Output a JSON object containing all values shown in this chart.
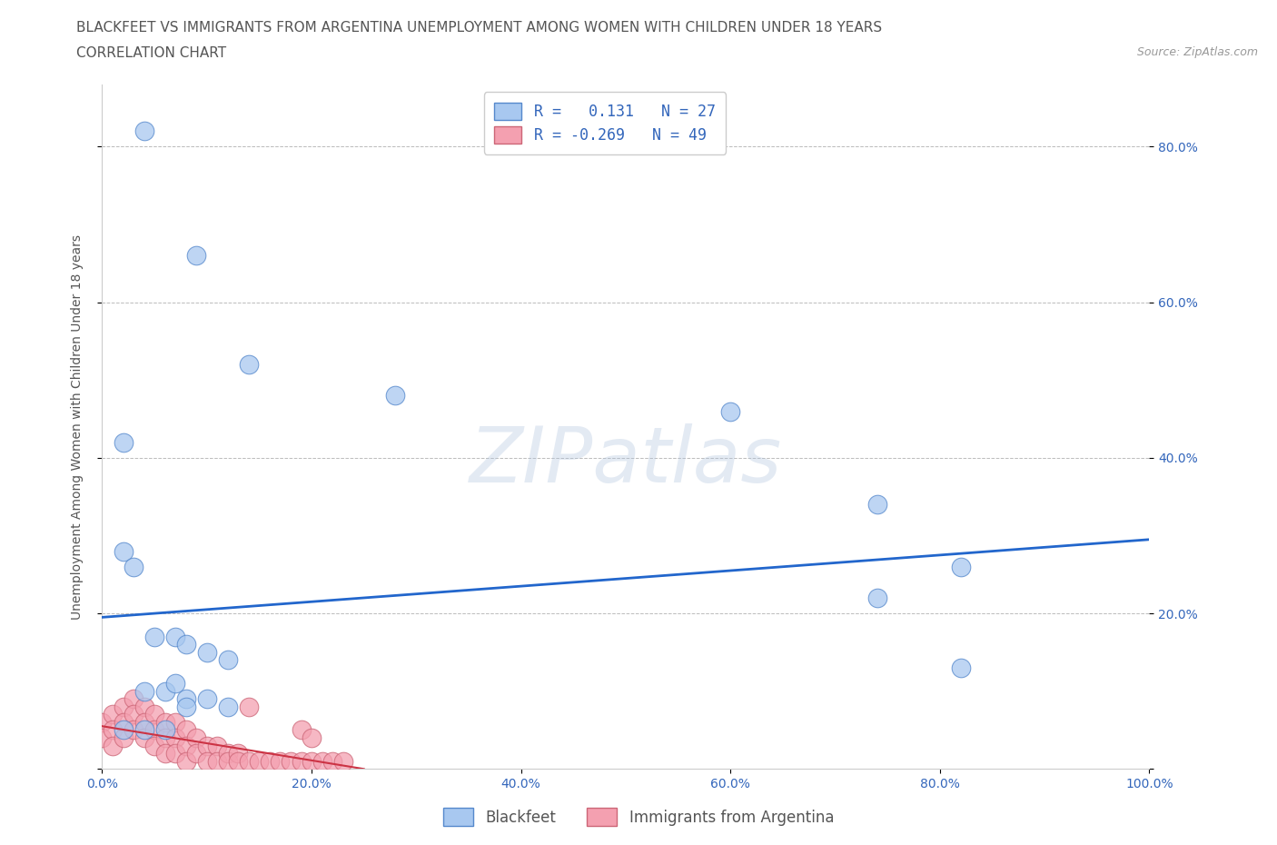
{
  "title_line1": "BLACKFEET VS IMMIGRANTS FROM ARGENTINA UNEMPLOYMENT AMONG WOMEN WITH CHILDREN UNDER 18 YEARS",
  "title_line2": "CORRELATION CHART",
  "source": "Source: ZipAtlas.com",
  "ylabel": "Unemployment Among Women with Children Under 18 years",
  "watermark": "ZIPatlas",
  "xlim": [
    0.0,
    1.0
  ],
  "ylim": [
    0.0,
    0.88
  ],
  "xtick_vals": [
    0.0,
    0.2,
    0.4,
    0.6,
    0.8,
    1.0
  ],
  "xticklabels": [
    "0.0%",
    "20.0%",
    "40.0%",
    "60.0%",
    "80.0%",
    "100.0%"
  ],
  "ytick_vals": [
    0.0,
    0.2,
    0.4,
    0.6,
    0.8
  ],
  "yticklabels": [
    "",
    "20.0%",
    "40.0%",
    "60.0%",
    "80.0%"
  ],
  "blackfeet_color": "#a8c8f0",
  "blackfeet_edge": "#5588cc",
  "argentina_color": "#f4a0b0",
  "argentina_edge": "#cc6677",
  "trend_blue": "#2266cc",
  "trend_red": "#cc3344",
  "R_blackfeet": 0.131,
  "N_blackfeet": 27,
  "R_argentina": -0.269,
  "N_argentina": 49,
  "blackfeet_x": [
    0.04,
    0.09,
    0.14,
    0.02,
    0.28,
    0.6,
    0.02,
    0.03,
    0.05,
    0.07,
    0.08,
    0.1,
    0.12,
    0.04,
    0.06,
    0.08,
    0.1,
    0.12,
    0.74,
    0.82,
    0.02,
    0.04,
    0.06,
    0.07,
    0.08,
    0.74,
    0.82
  ],
  "blackfeet_y": [
    0.82,
    0.66,
    0.52,
    0.42,
    0.48,
    0.46,
    0.28,
    0.26,
    0.17,
    0.17,
    0.16,
    0.15,
    0.14,
    0.1,
    0.1,
    0.09,
    0.09,
    0.08,
    0.34,
    0.26,
    0.05,
    0.05,
    0.05,
    0.11,
    0.08,
    0.22,
    0.13
  ],
  "argentina_x": [
    0.0,
    0.0,
    0.01,
    0.01,
    0.01,
    0.02,
    0.02,
    0.02,
    0.03,
    0.03,
    0.03,
    0.04,
    0.04,
    0.04,
    0.05,
    0.05,
    0.05,
    0.06,
    0.06,
    0.06,
    0.07,
    0.07,
    0.07,
    0.08,
    0.08,
    0.08,
    0.09,
    0.09,
    0.1,
    0.1,
    0.11,
    0.11,
    0.12,
    0.12,
    0.13,
    0.13,
    0.14,
    0.15,
    0.16,
    0.17,
    0.18,
    0.19,
    0.2,
    0.21,
    0.22,
    0.23,
    0.14,
    0.19,
    0.2
  ],
  "argentina_y": [
    0.06,
    0.04,
    0.07,
    0.05,
    0.03,
    0.08,
    0.06,
    0.04,
    0.09,
    0.07,
    0.05,
    0.08,
    0.06,
    0.04,
    0.07,
    0.05,
    0.03,
    0.06,
    0.04,
    0.02,
    0.06,
    0.04,
    0.02,
    0.05,
    0.03,
    0.01,
    0.04,
    0.02,
    0.03,
    0.01,
    0.03,
    0.01,
    0.02,
    0.01,
    0.02,
    0.01,
    0.01,
    0.01,
    0.01,
    0.01,
    0.01,
    0.01,
    0.01,
    0.01,
    0.01,
    0.01,
    0.08,
    0.05,
    0.04
  ],
  "legend_label_blackfeet": "Blackfeet",
  "legend_label_argentina": "Immigrants from Argentina",
  "title_fontsize": 11,
  "axis_label_fontsize": 10,
  "tick_fontsize": 10,
  "legend_fontsize": 12
}
